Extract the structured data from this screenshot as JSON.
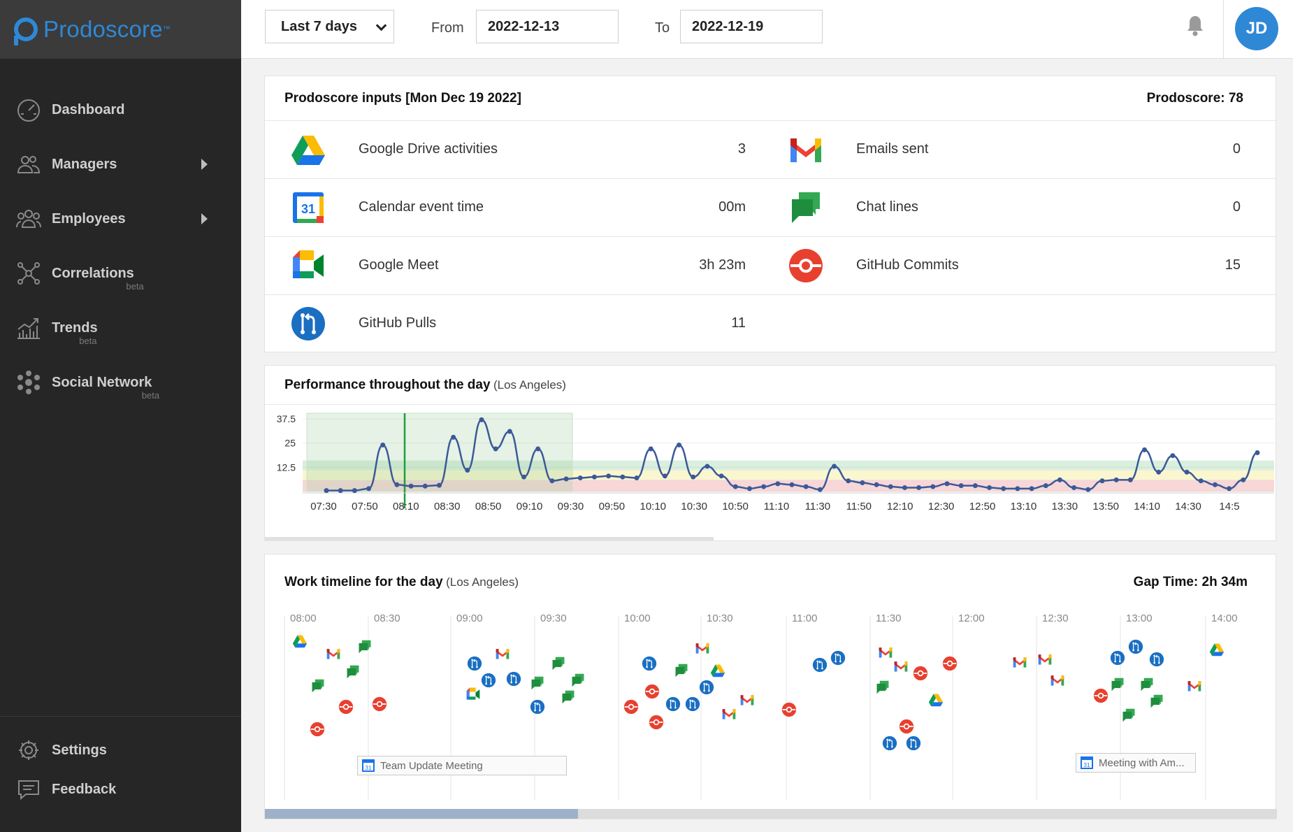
{
  "brand": {
    "name": "Prodoscore",
    "tm": "™"
  },
  "nav": {
    "items": [
      {
        "label": "Dashboard",
        "icon": "gauge-icon",
        "beta": "",
        "arrow": false
      },
      {
        "label": "Managers",
        "icon": "managers-icon",
        "beta": "",
        "arrow": true
      },
      {
        "label": "Employees",
        "icon": "employees-icon",
        "beta": "",
        "arrow": true
      },
      {
        "label": "Correlations",
        "icon": "correlations-icon",
        "beta": "beta",
        "arrow": false
      },
      {
        "label": "Trends",
        "icon": "trends-icon",
        "beta": "beta",
        "arrow": false
      },
      {
        "label": "Social Network",
        "icon": "social-network-icon",
        "beta": "beta",
        "arrow": false
      }
    ],
    "bottom": [
      {
        "label": "Settings",
        "icon": "gear-icon"
      },
      {
        "label": "Feedback",
        "icon": "feedback-icon"
      }
    ]
  },
  "topbar": {
    "range": "Last 7 days",
    "from_label": "From",
    "from": "2022-12-13",
    "to_label": "To",
    "to": "2022-12-19",
    "avatar": "JD"
  },
  "inputs": {
    "title": "Prodoscore inputs [Mon Dec 19 2022]",
    "score": "Prodoscore: 78",
    "rows": [
      {
        "left": {
          "icon": "google-drive-icon",
          "label": "Google Drive activities",
          "value": "3"
        },
        "right": {
          "icon": "gmail-icon",
          "label": "Emails sent",
          "value": "0"
        }
      },
      {
        "left": {
          "icon": "google-calendar-icon",
          "label": "Calendar event time",
          "value": "00m"
        },
        "right": {
          "icon": "google-chat-icon",
          "label": "Chat lines",
          "value": "0"
        }
      },
      {
        "left": {
          "icon": "google-meet-icon",
          "label": "Google Meet",
          "value": "3h 23m"
        },
        "right": {
          "icon": "github-commit-icon",
          "label": "GitHub Commits",
          "value": "15"
        }
      },
      {
        "left": {
          "icon": "github-pull-icon",
          "label": "GitHub Pulls",
          "value": "11"
        }
      }
    ]
  },
  "performance": {
    "title": "Performance throughout the day",
    "subtitle": "(Los Angeles)"
  },
  "chart_data": {
    "type": "line",
    "yticks": [
      "37.5",
      "25",
      "12.5"
    ],
    "ylim": [
      0,
      37.5
    ],
    "x_ticks": [
      "07:30",
      "07:50",
      "08:10",
      "08:30",
      "08:50",
      "09:10",
      "09:30",
      "09:50",
      "10:10",
      "10:30",
      "10:50",
      "11:10",
      "11:30",
      "11:50",
      "12:10",
      "12:30",
      "12:50",
      "13:10",
      "13:30",
      "13:50",
      "14:10",
      "14:30",
      "14:5"
    ],
    "bands": {
      "red": [
        0,
        6
      ],
      "yellow": [
        6,
        11
      ],
      "green": [
        11,
        16
      ]
    },
    "values": [
      0.5,
      0.5,
      0.5,
      1.5,
      24,
      3.5,
      2.8,
      2.8,
      3.2,
      28,
      11,
      37,
      22,
      31,
      7.5,
      22,
      5.5,
      6.5,
      7,
      7.5,
      8,
      7.5,
      7,
      22,
      8,
      24,
      7.5,
      13,
      8,
      2.5,
      1.5,
      2.5,
      4,
      3.5,
      2.5,
      1,
      13,
      5.5,
      4.5,
      3.5,
      2.5,
      2,
      2,
      2.5,
      4,
      3,
      3,
      2,
      1.5,
      1.5,
      1.5,
      3,
      6,
      2,
      1,
      5.5,
      6,
      6,
      21.5,
      10,
      18.5,
      10,
      5.5,
      3.5,
      1.5,
      6,
      20
    ]
  },
  "timeline": {
    "title": "Work timeline for the day",
    "subtitle": "(Los Angeles)",
    "gap": "Gap Time: 2h 34m",
    "ticks": [
      "08:00",
      "08:30",
      "09:00",
      "09:30",
      "10:00",
      "10:30",
      "11:00",
      "11:30",
      "12:00",
      "12:30",
      "13:00",
      "14:00"
    ],
    "meetings": [
      "Team Update Meeting",
      "Meeting with Am..."
    ]
  },
  "colors": {
    "accent": "#2e88d6",
    "sidebar": "#262626",
    "line": "#3b5998",
    "gmail_red": "#ea4335",
    "chat_green": "#1f9e45",
    "commit_red": "#e8402f",
    "pull_blue": "#1a6fc2"
  }
}
